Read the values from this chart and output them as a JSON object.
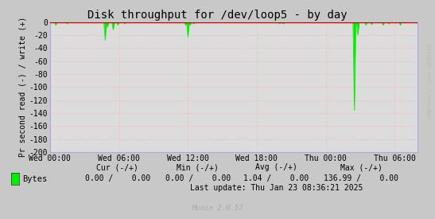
{
  "title": "Disk throughput for /dev/loop5 - by day",
  "ylabel": "Pr second read (-) / write (+)",
  "background_color": "#c8c8c8",
  "plot_bg_color": "#dcdcdc",
  "grid_color_h": "#ffaaaa",
  "grid_color_v": "#ffaaaa",
  "line_color": "#00ee00",
  "zero_line_color": "#cc0000",
  "border_color": "#aaaadd",
  "ylim": [
    -200,
    0
  ],
  "yticks": [
    0,
    -20,
    -40,
    -60,
    -80,
    -100,
    -120,
    -140,
    -160,
    -180,
    -200
  ],
  "x_labels": [
    "Wed 00:00",
    "Wed 06:00",
    "Wed 12:00",
    "Wed 18:00",
    "Thu 00:00",
    "Thu 06:00"
  ],
  "x_tick_positions": [
    0,
    6,
    12,
    18,
    24,
    30
  ],
  "xlim": [
    0,
    32
  ],
  "watermark": "RRDTOOL / TOBI OETIKER",
  "legend_label": "Bytes",
  "cur_label": "Cur (-/+)",
  "min_label": "Min (-/+)",
  "avg_label": "Avg (-/+)",
  "max_label": "Max (-/+)",
  "cur_val": "0.00 /    0.00",
  "min_val": "0.00 /    0.00",
  "avg_val": "1.04 /    0.00",
  "max_val": "136.99 /    0.00",
  "last_update": "Last update: Thu Jan 23 08:36:21 2025",
  "munin_version": "Munin 2.0.57",
  "spike_data": [
    [
      0.5,
      -5
    ],
    [
      1.5,
      -3
    ],
    [
      4.8,
      -28
    ],
    [
      5.0,
      -8
    ],
    [
      5.5,
      -12
    ],
    [
      5.9,
      -5
    ],
    [
      6.5,
      -3
    ],
    [
      11.8,
      -5
    ],
    [
      12.0,
      -23
    ],
    [
      12.2,
      -5
    ],
    [
      12.5,
      -3
    ],
    [
      20.0,
      -3
    ],
    [
      20.3,
      -3
    ],
    [
      26.5,
      -136
    ],
    [
      26.8,
      -20
    ],
    [
      27.5,
      -5
    ],
    [
      28.0,
      -4
    ],
    [
      29.0,
      -5
    ],
    [
      29.5,
      -3
    ],
    [
      30.5,
      -5
    ]
  ]
}
